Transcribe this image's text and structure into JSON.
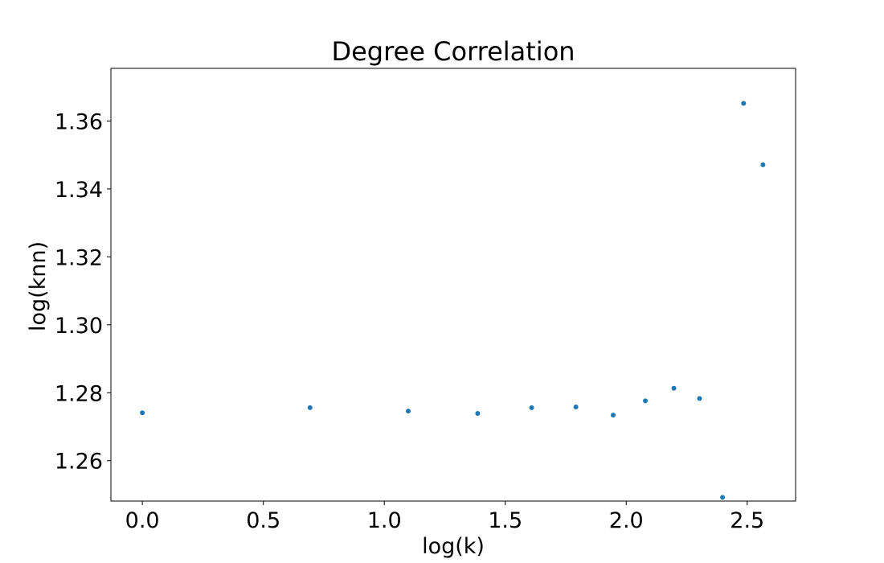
{
  "chart_data": {
    "type": "scatter",
    "title": "Degree Correlation",
    "xlabel": "log(k)",
    "ylabel": "log(knn)",
    "xlim": [
      -0.13,
      2.7
    ],
    "ylim": [
      1.2481,
      1.3755
    ],
    "xticks": [
      0.0,
      0.5,
      1.0,
      1.5,
      2.0,
      2.5
    ],
    "xtick_labels": [
      "0.0",
      "0.5",
      "1.0",
      "1.5",
      "2.0",
      "2.5"
    ],
    "yticks": [
      1.26,
      1.28,
      1.3,
      1.32,
      1.34,
      1.36
    ],
    "ytick_labels": [
      "1.26",
      "1.28",
      "1.30",
      "1.32",
      "1.34",
      "1.36"
    ],
    "grid": false,
    "marker_color": "#1f77b4",
    "series": [
      {
        "x": [
          0.0,
          0.693,
          1.099,
          1.386,
          1.609,
          1.792,
          1.946,
          2.079,
          2.197,
          2.303,
          2.398,
          2.485,
          2.565
        ],
        "y": [
          1.2741,
          1.2756,
          1.2746,
          1.2739,
          1.2756,
          1.2758,
          1.2734,
          1.2776,
          1.2813,
          1.2783,
          1.2492,
          1.3652,
          1.3471
        ]
      }
    ]
  }
}
